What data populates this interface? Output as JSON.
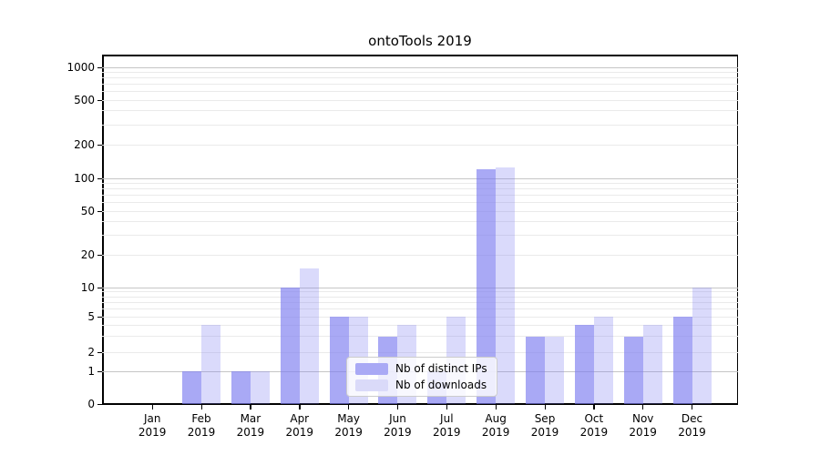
{
  "title": "ontoTools 2019",
  "legend": {
    "items": [
      {
        "label": "Nb of distinct IPs",
        "swatch_color": "#a9a9f5"
      },
      {
        "label": "Nb of downloads",
        "swatch_color": "#dadaf9"
      }
    ]
  },
  "colors": {
    "bar_ips": "rgba(123,123,240,0.65)",
    "bar_downloads": "rgba(123,123,240,0.28)",
    "grid_major": "#c6c6c6",
    "grid_minor": "#eaeaea",
    "spine": "#000000"
  },
  "chart_data": {
    "type": "bar",
    "title": "ontoTools 2019",
    "categories": [
      "Jan 2019",
      "Feb 2019",
      "Mar 2019",
      "Apr 2019",
      "May 2019",
      "Jun 2019",
      "Jul 2019",
      "Aug 2019",
      "Sep 2019",
      "Oct 2019",
      "Nov 2019",
      "Dec 2019"
    ],
    "x_tick_labels": [
      {
        "line1": "Jan",
        "line2": "2019"
      },
      {
        "line1": "Feb",
        "line2": "2019"
      },
      {
        "line1": "Mar",
        "line2": "2019"
      },
      {
        "line1": "Apr",
        "line2": "2019"
      },
      {
        "line1": "May",
        "line2": "2019"
      },
      {
        "line1": "Jun",
        "line2": "2019"
      },
      {
        "line1": "Jul",
        "line2": "2019"
      },
      {
        "line1": "Aug",
        "line2": "2019"
      },
      {
        "line1": "Sep",
        "line2": "2019"
      },
      {
        "line1": "Oct",
        "line2": "2019"
      },
      {
        "line1": "Nov",
        "line2": "2019"
      },
      {
        "line1": "Dec",
        "line2": "2019"
      }
    ],
    "series": [
      {
        "name": "Nb of distinct IPs",
        "values": [
          0,
          1,
          1,
          10,
          5,
          3,
          1,
          120,
          3,
          4,
          3,
          5
        ]
      },
      {
        "name": "Nb of downloads",
        "values": [
          0,
          4,
          1,
          15,
          5,
          4,
          5,
          125,
          3,
          5,
          4,
          10
        ]
      }
    ],
    "yaxis": {
      "scale": "log-like (symlog with 0 baseline)",
      "tick_labels": [
        "0",
        "1",
        "2",
        "5",
        "10",
        "20",
        "50",
        "100",
        "200",
        "500",
        "1000"
      ],
      "tick_values": [
        0,
        1,
        2,
        5,
        10,
        20,
        50,
        100,
        200,
        500,
        1000
      ],
      "ylim": [
        0,
        1400
      ]
    },
    "grid": "on",
    "legend_position": "inside lower-center"
  }
}
